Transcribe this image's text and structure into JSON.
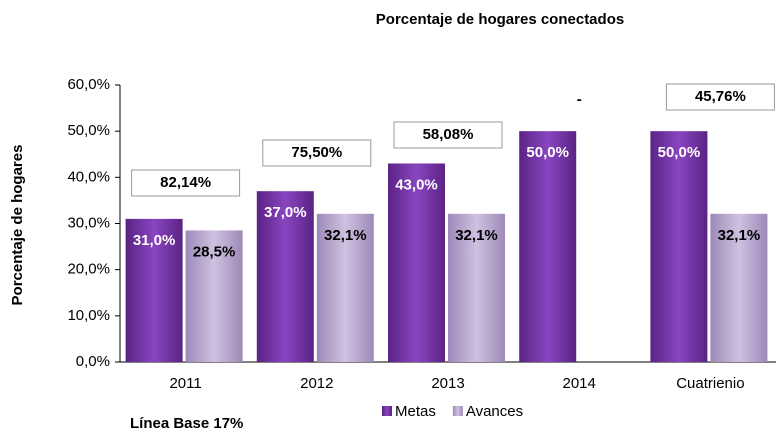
{
  "chart_data": {
    "type": "bar",
    "title": "Porcentaje de hogares conectados",
    "y_label": "Porcentaje de hogares",
    "categories": [
      "2011",
      "2012",
      "2013",
      "2014",
      "Cuatrienio"
    ],
    "series": [
      {
        "name": "Metas",
        "color": "#7030a0",
        "values": [
          31.0,
          37.0,
          43.0,
          50.0,
          50.0
        ],
        "value_labels": [
          "31,0%",
          "37,0%",
          "43,0%",
          "50,0%",
          "50,0%"
        ]
      },
      {
        "name": "Avances",
        "color": "#b3a2c7",
        "values": [
          28.5,
          32.1,
          32.1,
          null,
          32.1
        ],
        "value_labels": [
          "28,5%",
          "32,1%",
          "32,1%",
          null,
          "32,1%"
        ]
      }
    ],
    "annotations": [
      "82,14%",
      "75,50%",
      "58,08%",
      "-",
      "45,76%"
    ],
    "footnote": "Línea Base 17%",
    "ylim": [
      0,
      60
    ],
    "yticks": [
      {
        "value": 0,
        "label": "0,0%"
      },
      {
        "value": 10,
        "label": "10,0%"
      },
      {
        "value": 20,
        "label": "20,0%"
      },
      {
        "value": 30,
        "label": "30,0%"
      },
      {
        "value": 40,
        "label": "40,0%"
      },
      {
        "value": 50,
        "label": "50,0%"
      },
      {
        "value": 60,
        "label": "60,0%"
      }
    ],
    "legend": "bottom"
  }
}
